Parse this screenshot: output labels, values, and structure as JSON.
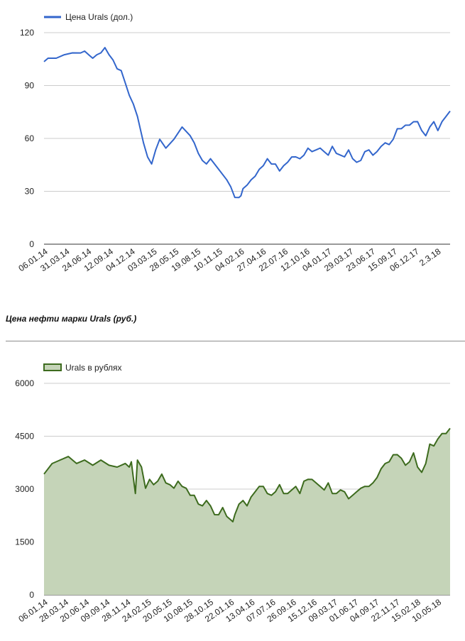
{
  "chart_data": [
    {
      "type": "line",
      "legend": "Цена Urals (дол.)",
      "legend_position": "top-left",
      "color": "#3366cc",
      "ylim": [
        0,
        120
      ],
      "yticks": [
        0,
        30,
        60,
        90,
        120
      ],
      "grid": true,
      "categories": [
        "06.01.14",
        "31.03.14",
        "24.06.14",
        "12.09.14",
        "04.12.14",
        "03.03.15",
        "28.05.15",
        "19.08.15",
        "10.11.15",
        "04.02.16",
        "27.04.16",
        "22.07.16",
        "12.10.16",
        "04.01.17",
        "29.03.17",
        "23.06.17",
        "15.09.17",
        "06.12.17",
        "2.3.18"
      ],
      "series": [
        {
          "name": "Цена Urals (дол.)",
          "x": [
            0.0,
            0.01,
            0.03,
            0.05,
            0.07,
            0.09,
            0.1,
            0.11,
            0.12,
            0.13,
            0.14,
            0.15,
            0.16,
            0.17,
            0.18,
            0.19,
            0.2,
            0.21,
            0.22,
            0.23,
            0.245,
            0.255,
            0.265,
            0.275,
            0.285,
            0.3,
            0.32,
            0.34,
            0.36,
            0.37,
            0.38,
            0.39,
            0.4,
            0.41,
            0.42,
            0.43,
            0.45,
            0.46,
            0.47,
            0.48,
            0.485,
            0.49,
            0.5,
            0.51,
            0.52,
            0.53,
            0.54,
            0.55,
            0.56,
            0.57,
            0.58,
            0.59,
            0.6,
            0.61,
            0.62,
            0.63,
            0.64,
            0.65,
            0.66,
            0.67,
            0.68,
            0.69,
            0.7,
            0.71,
            0.72,
            0.73,
            0.74,
            0.75,
            0.76,
            0.77,
            0.78,
            0.79,
            0.8,
            0.81,
            0.82,
            0.83,
            0.84,
            0.85,
            0.86,
            0.87,
            0.88,
            0.89,
            0.9,
            0.91,
            0.92,
            0.93,
            0.94,
            0.95,
            0.96,
            0.97,
            0.98,
            0.99,
            1.0
          ],
          "values": [
            104,
            105,
            106,
            107,
            109,
            108,
            110,
            107,
            106,
            107,
            109,
            111,
            108,
            104,
            100,
            98,
            92,
            84,
            80,
            72,
            58,
            49,
            46,
            53,
            60,
            54,
            60,
            66,
            62,
            57,
            52,
            47,
            46,
            48,
            46,
            42,
            37,
            32,
            27,
            26,
            28,
            31,
            34,
            36,
            39,
            42,
            45,
            48,
            46,
            45,
            42,
            44,
            47,
            49,
            50,
            48,
            51,
            54,
            53,
            53,
            55,
            52,
            51,
            55,
            52,
            50,
            50,
            53,
            49,
            46,
            48,
            52,
            54,
            50,
            53,
            55,
            58,
            56,
            60,
            65,
            66,
            67,
            68,
            69,
            70,
            64,
            62,
            66,
            70,
            64,
            70,
            72,
            76
          ]
        }
      ]
    },
    {
      "type": "area",
      "legend": "Urals в рублях",
      "legend_position": "top-left",
      "color": "#3d6b1e",
      "fill": "#c5d4b8",
      "ylim": [
        0,
        6000
      ],
      "yticks": [
        0,
        1500,
        3000,
        4500,
        6000
      ],
      "grid": true,
      "categories": [
        "06.01.14",
        "28.03.14",
        "20.06.14",
        "09.09.14",
        "28.11.14",
        "24.02.15",
        "20.05.15",
        "10.08.15",
        "28.10.15",
        "22.01.16",
        "13.04.16",
        "07.07.16",
        "26.09.16",
        "15.12.16",
        "09.03.17",
        "01.06.17",
        "04.09.17",
        "22.11.17",
        "15.02.18",
        "10.05.18"
      ],
      "series": [
        {
          "name": "Urals в рублях",
          "x": [
            0.0,
            0.02,
            0.04,
            0.06,
            0.08,
            0.1,
            0.12,
            0.14,
            0.16,
            0.18,
            0.2,
            0.21,
            0.215,
            0.22,
            0.225,
            0.23,
            0.24,
            0.25,
            0.26,
            0.27,
            0.28,
            0.29,
            0.3,
            0.31,
            0.32,
            0.33,
            0.34,
            0.35,
            0.36,
            0.37,
            0.38,
            0.39,
            0.4,
            0.41,
            0.42,
            0.43,
            0.44,
            0.45,
            0.46,
            0.465,
            0.47,
            0.48,
            0.49,
            0.5,
            0.51,
            0.52,
            0.53,
            0.54,
            0.55,
            0.56,
            0.57,
            0.58,
            0.59,
            0.6,
            0.61,
            0.62,
            0.63,
            0.64,
            0.65,
            0.66,
            0.67,
            0.68,
            0.69,
            0.7,
            0.71,
            0.72,
            0.73,
            0.74,
            0.75,
            0.76,
            0.77,
            0.78,
            0.79,
            0.8,
            0.81,
            0.82,
            0.83,
            0.84,
            0.85,
            0.86,
            0.87,
            0.88,
            0.89,
            0.9,
            0.91,
            0.92,
            0.93,
            0.94,
            0.95,
            0.96,
            0.97,
            0.98,
            0.99,
            1.0
          ],
          "values": [
            3450,
            3700,
            3850,
            3900,
            3750,
            3800,
            3700,
            3800,
            3700,
            3600,
            3750,
            3600,
            3800,
            3300,
            2900,
            3800,
            3650,
            3000,
            3300,
            3100,
            3250,
            3400,
            3200,
            3100,
            3050,
            3200,
            3100,
            3000,
            2850,
            2800,
            2600,
            2500,
            2700,
            2500,
            2300,
            2250,
            2500,
            2200,
            2150,
            2050,
            2300,
            2550,
            2700,
            2500,
            2800,
            2900,
            3100,
            3050,
            2900,
            2800,
            2950,
            3100,
            2900,
            2850,
            3000,
            3050,
            2900,
            3200,
            3300,
            3250,
            3200,
            3050,
            3000,
            3150,
            2900,
            2850,
            3000,
            2900,
            2750,
            2800,
            2950,
            3000,
            3100,
            3050,
            3200,
            3300,
            3600,
            3700,
            3800,
            3950,
            4000,
            3850,
            3700,
            3750,
            4050,
            3600,
            3500,
            3700,
            4300,
            4200,
            4450,
            4550,
            4600,
            4700
          ]
        }
      ]
    }
  ],
  "section": {
    "title": "Цена нефти марки Urals (руб.)"
  }
}
